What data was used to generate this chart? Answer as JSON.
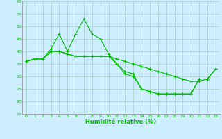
{
  "xlabel": "Humidité relative (%)",
  "bg_color": "#cceeff",
  "grid_color": "#aacccc",
  "line_color": "#00bb00",
  "xlim": [
    -0.5,
    23.5
  ],
  "ylim": [
    15,
    60
  ],
  "yticks": [
    15,
    20,
    25,
    30,
    35,
    40,
    45,
    50,
    55,
    60
  ],
  "xticks": [
    0,
    1,
    2,
    3,
    4,
    5,
    6,
    7,
    8,
    9,
    10,
    11,
    12,
    13,
    14,
    15,
    16,
    17,
    18,
    19,
    20,
    21,
    22,
    23
  ],
  "series": [
    {
      "x": [
        0,
        1,
        2,
        3,
        4,
        5,
        6,
        7,
        8,
        9,
        10,
        11,
        12,
        13,
        14,
        15,
        16,
        17,
        18,
        19,
        20,
        21,
        22,
        23
      ],
      "y": [
        36,
        37,
        37,
        41,
        47,
        40,
        47,
        53,
        47,
        45,
        39,
        35,
        31,
        30,
        25,
        24,
        23,
        23,
        23,
        23,
        23,
        29,
        29,
        33
      ]
    },
    {
      "x": [
        0,
        1,
        2,
        3,
        4,
        5,
        6,
        7,
        8,
        9,
        10,
        11,
        12,
        13,
        14,
        15,
        16,
        17,
        18,
        19,
        20,
        21,
        22,
        23
      ],
      "y": [
        36,
        37,
        37,
        40,
        40,
        39,
        38,
        38,
        38,
        38,
        38,
        37,
        36,
        35,
        34,
        33,
        32,
        31,
        30,
        29,
        28,
        28,
        29,
        33
      ]
    },
    {
      "x": [
        0,
        1,
        2,
        3,
        4,
        5,
        6,
        7,
        8,
        9,
        10,
        11,
        12,
        13,
        14,
        15,
        16,
        17,
        18,
        19,
        20,
        21,
        22,
        23
      ],
      "y": [
        36,
        37,
        37,
        40,
        40,
        39,
        38,
        38,
        38,
        38,
        38,
        35,
        32,
        31,
        25,
        24,
        23,
        23,
        23,
        23,
        23,
        29,
        29,
        33
      ]
    }
  ]
}
